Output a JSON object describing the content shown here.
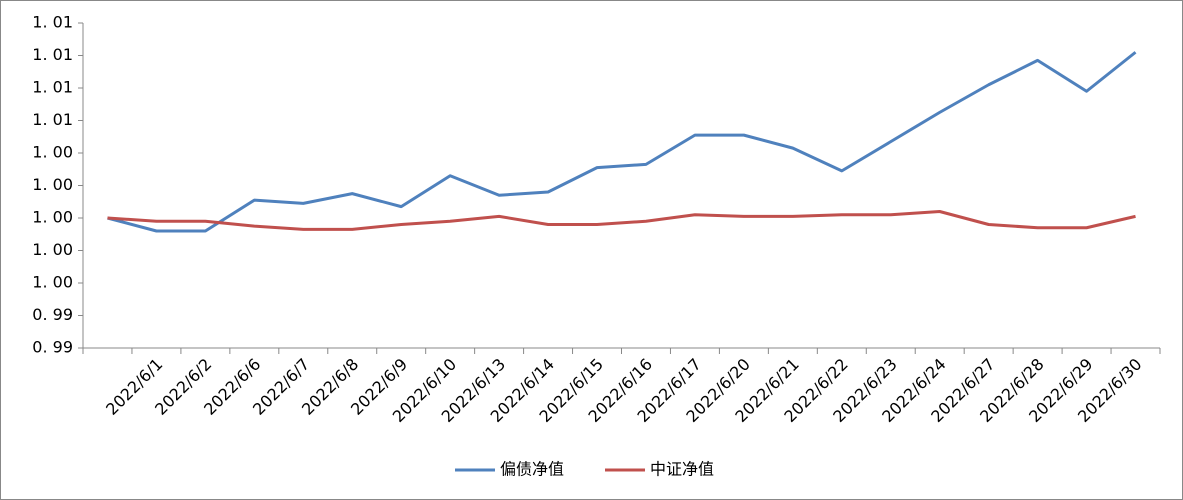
{
  "chart_data": {
    "type": "line",
    "categories": [
      null,
      "2022/6/1",
      "2022/6/2",
      "2022/6/6",
      "2022/6/7",
      "2022/6/8",
      "2022/6/9",
      "2022/6/10",
      "2022/6/13",
      "2022/6/14",
      "2022/6/15",
      "2022/6/16",
      "2022/6/17",
      "2022/6/20",
      "2022/6/21",
      "2022/6/22",
      "2022/6/23",
      "2022/6/24",
      "2022/6/27",
      "2022/6/28",
      "2022/6/29",
      "2022/6/30"
    ],
    "series": [
      {
        "name": "偏债净值",
        "color": "#4f81bd",
        "values": [
          1.0,
          0.9992,
          0.9992,
          1.0011,
          1.0009,
          1.0015,
          1.0007,
          1.0026,
          1.0014,
          1.0016,
          1.0031,
          1.0033,
          1.0051,
          1.0051,
          1.0043,
          1.0029,
          1.0047,
          1.0065,
          1.0082,
          1.0097,
          1.0078,
          1.0102
        ]
      },
      {
        "name": "中证净值",
        "color": "#c0504d",
        "values": [
          1.0,
          0.9998,
          0.9998,
          0.9995,
          0.9993,
          0.9993,
          0.9996,
          0.9998,
          1.0001,
          0.9996,
          0.9996,
          0.9998,
          1.0002,
          1.0001,
          1.0001,
          1.0002,
          1.0002,
          1.0004,
          0.9996,
          0.9994,
          0.9994,
          1.0001
        ]
      }
    ],
    "ylim": [
      0.992,
      1.012
    ],
    "yticks": [
      {
        "value": 0.992,
        "label": "0. 99"
      },
      {
        "value": 0.994,
        "label": "0. 99"
      },
      {
        "value": 0.996,
        "label": "1. 00"
      },
      {
        "value": 0.998,
        "label": "1. 00"
      },
      {
        "value": 1.0,
        "label": "1. 00"
      },
      {
        "value": 1.002,
        "label": "1. 00"
      },
      {
        "value": 1.004,
        "label": "1. 00"
      },
      {
        "value": 1.006,
        "label": "1. 01"
      },
      {
        "value": 1.008,
        "label": "1. 01"
      },
      {
        "value": 1.01,
        "label": "1. 01"
      },
      {
        "value": 1.012,
        "label": "1. 01"
      }
    ],
    "grid": false,
    "legend": "bottom"
  }
}
